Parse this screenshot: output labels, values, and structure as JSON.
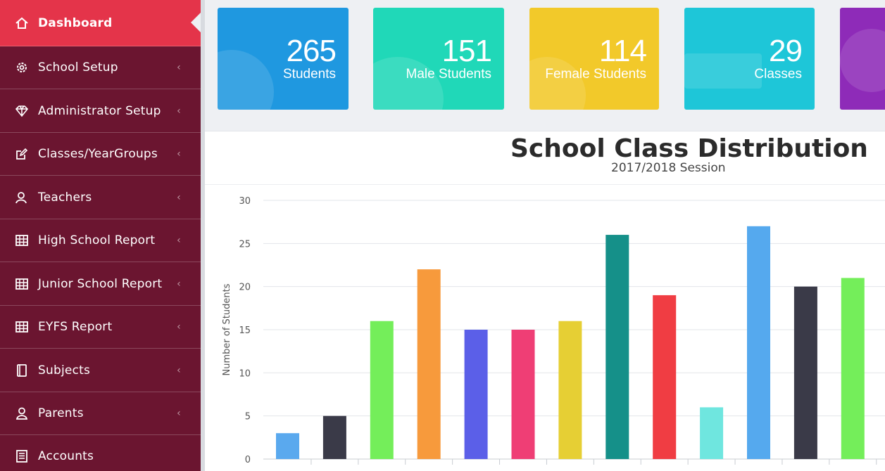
{
  "sidebar": {
    "items": [
      {
        "label": "Dashboard",
        "icon": "home-icon",
        "active": true
      },
      {
        "label": "School Setup",
        "icon": "gear-icon"
      },
      {
        "label": "Administrator Setup",
        "icon": "diamond-icon"
      },
      {
        "label": "Classes/YearGroups",
        "icon": "edit-icon"
      },
      {
        "label": "Teachers",
        "icon": "teacher-icon"
      },
      {
        "label": "High School Report",
        "icon": "table-icon"
      },
      {
        "label": "Junior School Report",
        "icon": "table-icon"
      },
      {
        "label": "EYFS Report",
        "icon": "table-icon"
      },
      {
        "label": "Subjects",
        "icon": "book-icon"
      },
      {
        "label": "Parents",
        "icon": "user-icon"
      },
      {
        "label": "Accounts",
        "icon": "ledger-icon"
      }
    ],
    "chevron": "‹"
  },
  "stats": [
    {
      "value": "265",
      "label": "Students",
      "color": "#1f98e0"
    },
    {
      "value": "151",
      "label": "Male Students",
      "color": "#20d8b8"
    },
    {
      "value": "114",
      "label": "Female Students",
      "color": "#f2c92a"
    },
    {
      "value": "29",
      "label": "Classes",
      "color": "#1ec6d8"
    },
    {
      "value": "",
      "label": "",
      "color": "#8e2bb8"
    }
  ],
  "chart": {
    "title": "School Class Distribution",
    "subtitle": "2017/2018 Session"
  },
  "chart_data": {
    "type": "bar",
    "title": "School Class Distribution",
    "subtitle": "2017/2018 Session",
    "xlabel": "",
    "ylabel": "Number of Students",
    "ylim": [
      0,
      30
    ],
    "yticks": [
      0,
      5,
      10,
      15,
      20,
      25,
      30
    ],
    "grid": true,
    "values": [
      3,
      5,
      16,
      22,
      15,
      15,
      16,
      26,
      19,
      6,
      27,
      20,
      21
    ],
    "colors": [
      "#5aa9ee",
      "#3a3a48",
      "#74ee5a",
      "#f79a3c",
      "#5b5fe8",
      "#ef3e75",
      "#e6cf34",
      "#159089",
      "#f03d43",
      "#6fe6df",
      "#55a9ee",
      "#3a3a48",
      "#74ee5a"
    ]
  }
}
